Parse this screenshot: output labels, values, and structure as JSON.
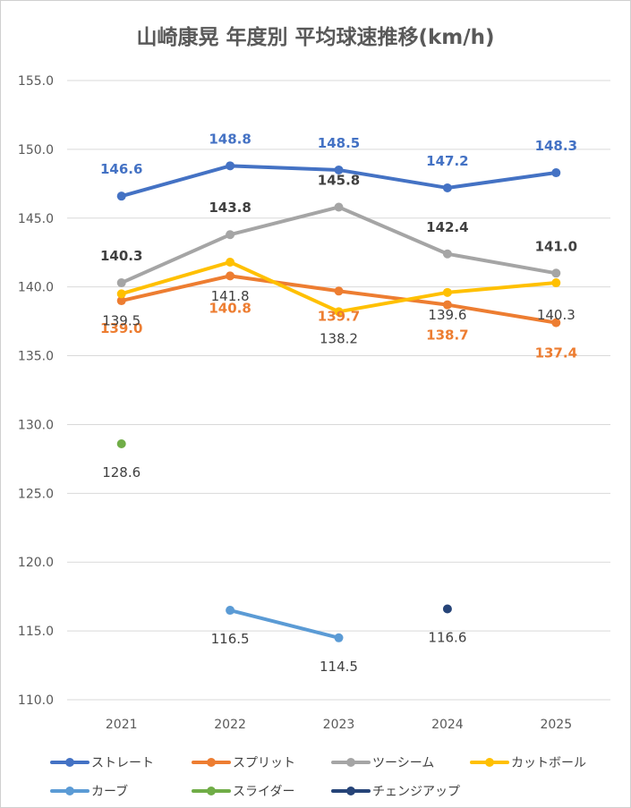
{
  "chart_data": {
    "type": "line",
    "title": "山崎康晃 年度別 平均球速推移(km/h)",
    "categories": [
      "2021",
      "2022",
      "2023",
      "2024",
      "2025"
    ],
    "ylim": [
      110,
      155
    ],
    "yticks": [
      "110.0",
      "115.0",
      "120.0",
      "125.0",
      "130.0",
      "135.0",
      "140.0",
      "145.0",
      "150.0",
      "155.0"
    ],
    "grid": true,
    "legend": "bottom",
    "series": [
      {
        "name": "ストレート",
        "color": "#4472C4",
        "values": [
          146.6,
          148.8,
          148.5,
          147.2,
          148.3
        ],
        "labels": [
          "146.6",
          "148.8",
          "148.5",
          "147.2",
          "148.3"
        ],
        "label_color": "#4472C4"
      },
      {
        "name": "スプリット",
        "color": "#ED7D31",
        "values": [
          139.0,
          140.8,
          139.7,
          138.7,
          137.4
        ],
        "labels": [
          "139.0",
          "140.8",
          "139.7",
          "138.7",
          "137.4"
        ],
        "label_color": "#ED7D31"
      },
      {
        "name": "ツーシーム",
        "color": "#A5A5A5",
        "values": [
          140.3,
          143.8,
          145.8,
          142.4,
          141.0
        ],
        "labels": [
          "140.3",
          "143.8",
          "145.8",
          "142.4",
          "141.0"
        ],
        "label_color": "#404040"
      },
      {
        "name": "カットボール",
        "color": "#FFC000",
        "values": [
          139.5,
          141.8,
          138.2,
          139.6,
          140.3
        ],
        "labels": [
          "139.5",
          "141.8",
          "138.2",
          "139.6",
          "140.3"
        ],
        "label_color": "#404040"
      },
      {
        "name": "カーブ",
        "color": "#5B9BD5",
        "values": [
          null,
          116.5,
          114.5,
          null,
          null
        ],
        "labels": [
          null,
          "116.5",
          "114.5",
          null,
          null
        ],
        "label_color": "#404040"
      },
      {
        "name": "スライダー",
        "color": "#70AD47",
        "values": [
          128.6,
          null,
          null,
          null,
          null
        ],
        "labels": [
          "128.6",
          null,
          null,
          null,
          null
        ],
        "label_color": "#404040"
      },
      {
        "name": "チェンジアップ",
        "color": "#264478",
        "values": [
          null,
          null,
          null,
          116.6,
          null
        ],
        "labels": [
          null,
          null,
          null,
          "116.6",
          null
        ],
        "label_color": "#404040"
      }
    ]
  }
}
